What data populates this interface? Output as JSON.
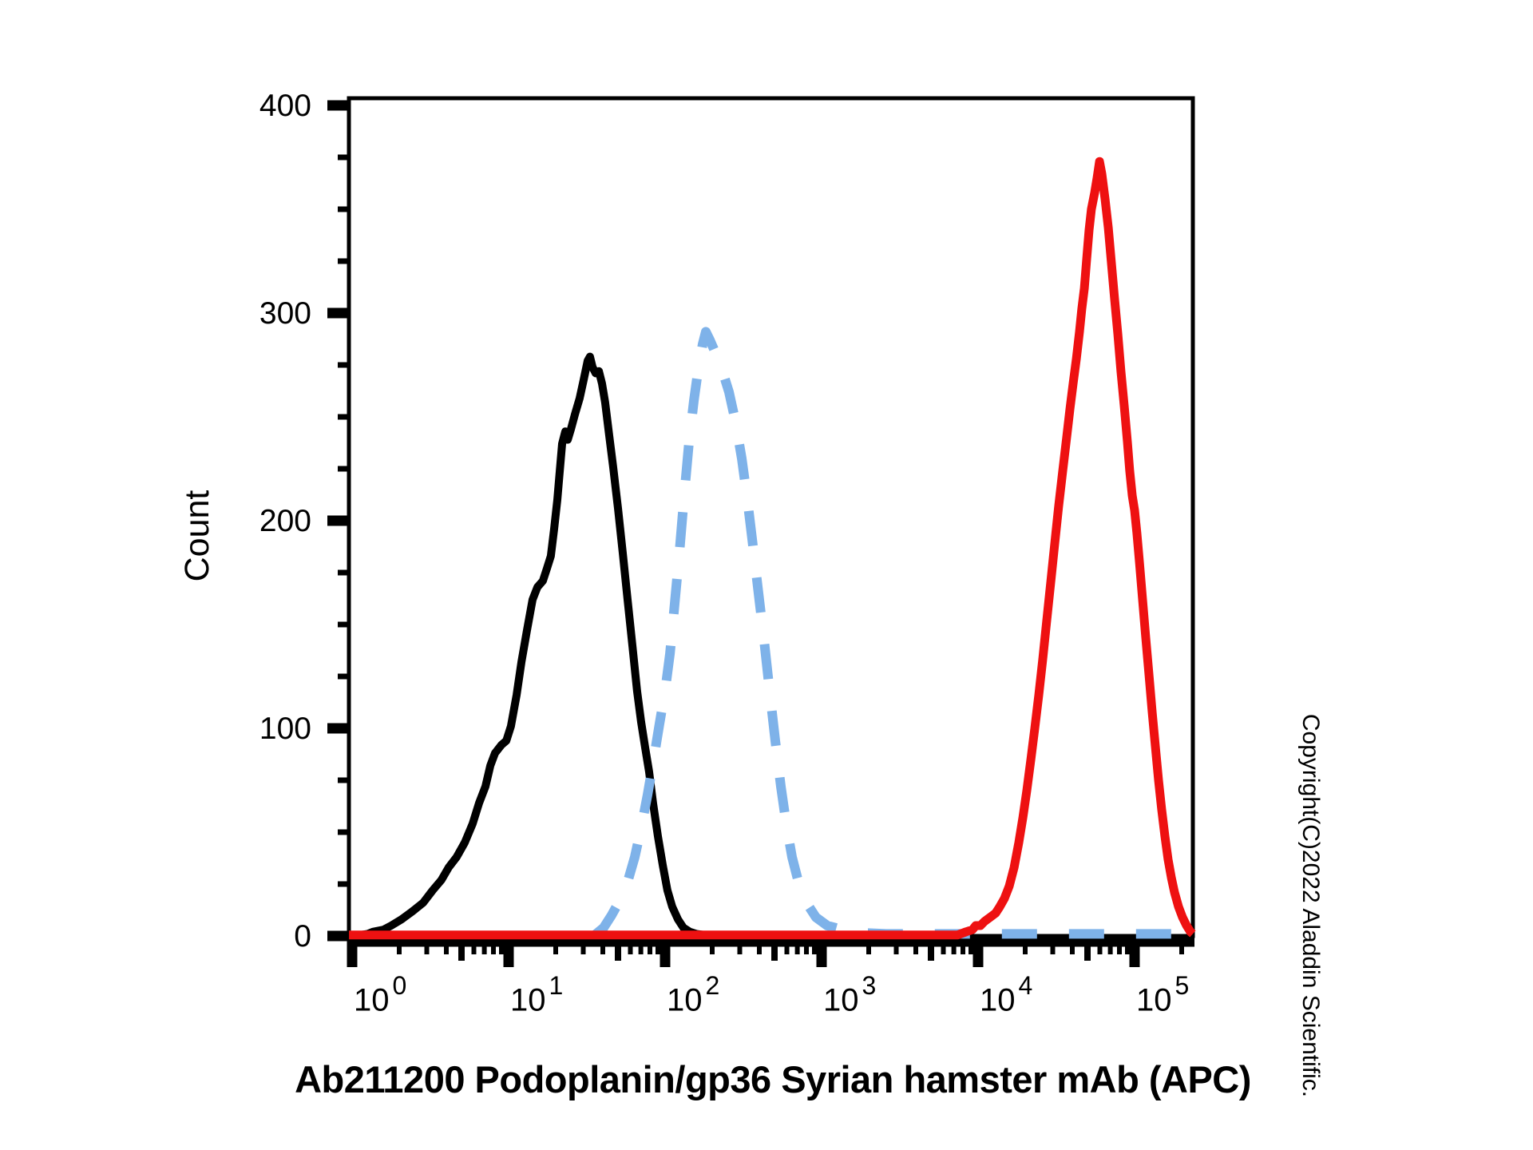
{
  "colors": {
    "background": "#ffffff",
    "axis": "#000000",
    "black_curve": "#000000",
    "blue_curve": "#7eb2e9",
    "red_curve": "#ee1111"
  },
  "x_axis_title": "Ab211200 Podoplanin/gp36 Syrian hamster mAb (APC)",
  "y_axis_title": "Count",
  "copyright_text": "Copyright(C)2022 Aladdin Scientific.",
  "chart_data": {
    "type": "line",
    "subtype": "flow-cytometry-histogram-overlay",
    "title": "",
    "xlabel": "Ab211200 Podoplanin/gp36 Syrian hamster mAb (APC)",
    "ylabel": "Count",
    "x_scale": "log10",
    "x_tick_base": "10",
    "x_decade_exponents": [
      0,
      1,
      2,
      3,
      4,
      5
    ],
    "x_range_log10": [
      -0.02,
      5.37
    ],
    "ylim": [
      0,
      403
    ],
    "y_ticks_major": [
      0,
      100,
      200,
      300,
      400
    ],
    "y_tick_labels": [
      "0",
      "100",
      "200",
      "300",
      "400"
    ],
    "y_minor_step": 25,
    "grid": false,
    "legend_position": "none",
    "series": [
      {
        "name": "black-solid-curve",
        "style": "solid",
        "color": "#000000",
        "peak": {
          "x_log10": 1.52,
          "count": 279
        },
        "points": [
          [
            0.056,
            0.5
          ],
          [
            0.1,
            1
          ],
          [
            0.133,
            2
          ],
          [
            0.2,
            3
          ],
          [
            0.25,
            5
          ],
          [
            0.316,
            8
          ],
          [
            0.388,
            12
          ],
          [
            0.454,
            16
          ],
          [
            0.515,
            22
          ],
          [
            0.571,
            27
          ],
          [
            0.617,
            33
          ],
          [
            0.668,
            38
          ],
          [
            0.72,
            45
          ],
          [
            0.77,
            54
          ],
          [
            0.811,
            64
          ],
          [
            0.852,
            72
          ],
          [
            0.883,
            82
          ],
          [
            0.913,
            88
          ],
          [
            0.954,
            92
          ],
          [
            0.985,
            94
          ],
          [
            1.015,
            101
          ],
          [
            1.051,
            116
          ],
          [
            1.082,
            132
          ],
          [
            1.117,
            147
          ],
          [
            1.153,
            162
          ],
          [
            1.184,
            168
          ],
          [
            1.219,
            171
          ],
          [
            1.245,
            177
          ],
          [
            1.27,
            183
          ],
          [
            1.291,
            196
          ],
          [
            1.311,
            210
          ],
          [
            1.327,
            224
          ],
          [
            1.342,
            237
          ],
          [
            1.362,
            243
          ],
          [
            1.378,
            239
          ],
          [
            1.398,
            244
          ],
          [
            1.423,
            251
          ],
          [
            1.454,
            259
          ],
          [
            1.48,
            268
          ],
          [
            1.505,
            277
          ],
          [
            1.52,
            279
          ],
          [
            1.536,
            274
          ],
          [
            1.556,
            271
          ],
          [
            1.577,
            272
          ],
          [
            1.597,
            266
          ],
          [
            1.617,
            257
          ],
          [
            1.643,
            241
          ],
          [
            1.668,
            226
          ],
          [
            1.699,
            206
          ],
          [
            1.73,
            184
          ],
          [
            1.76,
            162
          ],
          [
            1.791,
            140
          ],
          [
            1.821,
            118
          ],
          [
            1.847,
            103
          ],
          [
            1.872,
            91
          ],
          [
            1.898,
            79
          ],
          [
            1.923,
            64
          ],
          [
            1.954,
            48
          ],
          [
            1.985,
            34
          ],
          [
            2.015,
            22
          ],
          [
            2.046,
            14
          ],
          [
            2.082,
            8
          ],
          [
            2.117,
            4
          ],
          [
            2.158,
            2
          ],
          [
            2.199,
            1
          ],
          [
            2.25,
            0.5
          ]
        ]
      },
      {
        "name": "blue-dashed-curve",
        "style": "dashed",
        "color": "#7eb2e9",
        "peak": {
          "x_log10": 2.26,
          "count": 291
        },
        "points": [
          [
            1.551,
            0.5
          ],
          [
            1.607,
            4
          ],
          [
            1.658,
            10
          ],
          [
            1.709,
            17
          ],
          [
            1.76,
            26
          ],
          [
            1.806,
            38
          ],
          [
            1.847,
            52
          ],
          [
            1.888,
            68
          ],
          [
            1.929,
            86
          ],
          [
            1.964,
            102
          ],
          [
            2.0,
            118
          ],
          [
            2.031,
            136
          ],
          [
            2.061,
            160
          ],
          [
            2.092,
            185
          ],
          [
            2.122,
            212
          ],
          [
            2.153,
            238
          ],
          [
            2.184,
            258
          ],
          [
            2.214,
            274
          ],
          [
            2.24,
            285
          ],
          [
            2.26,
            291
          ],
          [
            2.286,
            287
          ],
          [
            2.321,
            281
          ],
          [
            2.367,
            272
          ],
          [
            2.408,
            262
          ],
          [
            2.449,
            248
          ],
          [
            2.49,
            230
          ],
          [
            2.526,
            210
          ],
          [
            2.561,
            188
          ],
          [
            2.597,
            165
          ],
          [
            2.633,
            142
          ],
          [
            2.668,
            118
          ],
          [
            2.704,
            94
          ],
          [
            2.74,
            72
          ],
          [
            2.776,
            53
          ],
          [
            2.811,
            38
          ],
          [
            2.852,
            26
          ],
          [
            2.903,
            16
          ],
          [
            2.964,
            9
          ],
          [
            3.036,
            5
          ],
          [
            3.133,
            3
          ],
          [
            3.26,
            1.5
          ],
          [
            3.413,
            1
          ],
          [
            5.37,
            1
          ]
        ]
      },
      {
        "name": "red-solid-curve",
        "style": "solid",
        "color": "#ee1111",
        "peak": {
          "x_log10": 4.776,
          "count": 373
        },
        "points": [
          [
            -0.02,
            0.5
          ],
          [
            3.87,
            0.5
          ],
          [
            3.923,
            2
          ],
          [
            3.964,
            3
          ],
          [
            3.985,
            5
          ],
          [
            4.015,
            5
          ],
          [
            4.041,
            7
          ],
          [
            4.077,
            9
          ],
          [
            4.112,
            11
          ],
          [
            4.138,
            14
          ],
          [
            4.168,
            18
          ],
          [
            4.199,
            24
          ],
          [
            4.23,
            33
          ],
          [
            4.26,
            45
          ],
          [
            4.286,
            57
          ],
          [
            4.311,
            70
          ],
          [
            4.337,
            85
          ],
          [
            4.362,
            100
          ],
          [
            4.388,
            116
          ],
          [
            4.413,
            133
          ],
          [
            4.439,
            152
          ],
          [
            4.464,
            170
          ],
          [
            4.49,
            189
          ],
          [
            4.515,
            207
          ],
          [
            4.541,
            224
          ],
          [
            4.566,
            240
          ],
          [
            4.587,
            254
          ],
          [
            4.607,
            266
          ],
          [
            4.628,
            278
          ],
          [
            4.648,
            291
          ],
          [
            4.663,
            302
          ],
          [
            4.679,
            312
          ],
          [
            4.694,
            326
          ],
          [
            4.709,
            340
          ],
          [
            4.724,
            350
          ],
          [
            4.745,
            358
          ],
          [
            4.76,
            365
          ],
          [
            4.776,
            373
          ],
          [
            4.791,
            367
          ],
          [
            4.811,
            355
          ],
          [
            4.832,
            341
          ],
          [
            4.852,
            324
          ],
          [
            4.872,
            307
          ],
          [
            4.893,
            290
          ],
          [
            4.913,
            272
          ],
          [
            4.934,
            255
          ],
          [
            4.954,
            238
          ],
          [
            4.969,
            224
          ],
          [
            4.985,
            212
          ],
          [
            5.0,
            205
          ],
          [
            5.015,
            194
          ],
          [
            5.031,
            180
          ],
          [
            5.051,
            162
          ],
          [
            5.071,
            144
          ],
          [
            5.092,
            126
          ],
          [
            5.112,
            108
          ],
          [
            5.133,
            91
          ],
          [
            5.153,
            75
          ],
          [
            5.173,
            61
          ],
          [
            5.194,
            48
          ],
          [
            5.214,
            37
          ],
          [
            5.235,
            28
          ],
          [
            5.255,
            21
          ],
          [
            5.281,
            14
          ],
          [
            5.306,
            9
          ],
          [
            5.332,
            5
          ],
          [
            5.357,
            2
          ],
          [
            5.372,
            1
          ]
        ]
      }
    ]
  }
}
